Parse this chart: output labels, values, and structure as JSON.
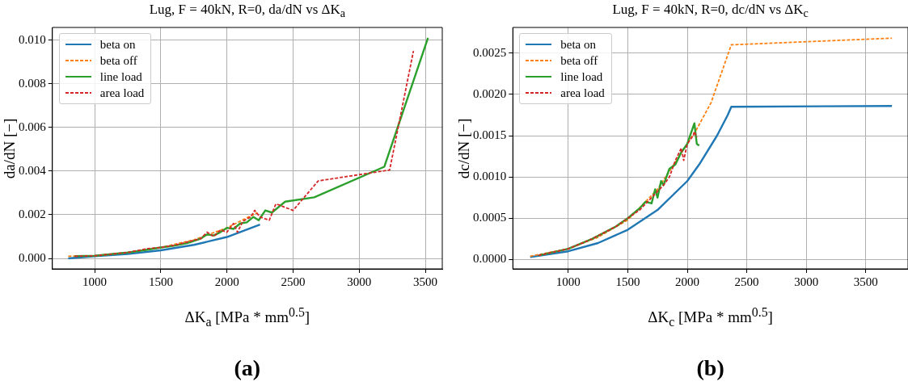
{
  "chart_data": [
    {
      "type": "line",
      "title": "Lug, F = 40kN, R=0, da/dN vs ΔK$_{a}$",
      "xlabel": "ΔK$_{a}$ [MPa * mm$^{0.5}$]",
      "ylabel": "da/dN [−]",
      "annotations": [
        "(a)"
      ],
      "legend": "top left",
      "grid": true,
      "xlim": [
        680,
        3628
      ],
      "ylim": [
        -0.00048,
        0.01058
      ],
      "xticks": [
        1000,
        1500,
        2000,
        2500,
        3000,
        3500
      ],
      "yticks": [
        {
          "value": 0,
          "label": "0.000"
        },
        {
          "value": 0.002,
          "label": "0.002"
        },
        {
          "value": 0.004,
          "label": "0.004"
        },
        {
          "value": 0.006,
          "label": "0.006"
        },
        {
          "value": 0.008,
          "label": "0.008"
        },
        {
          "value": 0.01,
          "label": "0.010"
        }
      ],
      "series": [
        {
          "name": "beta on",
          "color": "#1f77b4",
          "line_style": "solid",
          "x": [
            800,
            1000,
            1250,
            1500,
            1750,
            2000,
            2250
          ],
          "values": [
            0,
            0.0001,
            0.0002,
            0.00037,
            0.00062,
            0.00098,
            0.00155
          ]
        },
        {
          "name": "beta off",
          "color": "#ff7f0e",
          "line_style": "dashed",
          "x": [
            800,
            1000,
            1250,
            1500,
            1750,
            2000,
            2230
          ],
          "values": [
            0.0001,
            0.00012,
            0.00027,
            0.0005,
            0.00085,
            0.0014,
            0.0021
          ]
        },
        {
          "name": "line load",
          "color": "#2ca02c",
          "line_style": "solid",
          "x": [
            850,
            1000,
            1250,
            1400,
            1500,
            1600,
            1700,
            1800,
            1850,
            1900,
            1950,
            2000,
            2050,
            2100,
            2150,
            2200,
            2240,
            2290,
            2340,
            2440,
            2660,
            3190,
            3520
          ],
          "values": [
            0.0001,
            0.00012,
            0.00027,
            0.0004,
            0.0005,
            0.00058,
            0.0007,
            0.0009,
            0.0011,
            0.00105,
            0.0012,
            0.0014,
            0.00135,
            0.0016,
            0.00165,
            0.0019,
            0.00175,
            0.0022,
            0.0021,
            0.0026,
            0.0028,
            0.0042,
            0.0101
          ]
        },
        {
          "name": "area load",
          "color": "#d62728",
          "line_style": "dashed",
          "x": [
            850,
            1000,
            1250,
            1400,
            1500,
            1600,
            1700,
            1800,
            1850,
            1900,
            1950,
            2000,
            2050,
            2080,
            2120,
            2180,
            2210,
            2250,
            2320,
            2370,
            2500,
            2690,
            3230,
            3410
          ],
          "values": [
            0.0001,
            0.00012,
            0.00027,
            0.00045,
            0.0005,
            0.0006,
            0.00075,
            0.0009,
            0.0012,
            0.001,
            0.0013,
            0.0012,
            0.0016,
            0.0012,
            0.0017,
            0.0019,
            0.0022,
            0.0019,
            0.00175,
            0.0025,
            0.0022,
            0.00355,
            0.00405,
            0.0095
          ]
        }
      ]
    },
    {
      "type": "line",
      "title": "Lug, F = 40kN, R=0, dc/dN vs ΔK$_{c}$",
      "xlabel": "ΔK$_{c}$ [MPa * mm$^{0.5}$]",
      "ylabel": "dc/dN [−]",
      "annotations": [
        "(b)"
      ],
      "legend": "top left",
      "grid": true,
      "xlim": [
        534,
        3855
      ],
      "ylim": [
        -0.000113,
        0.00281
      ],
      "xticks": [
        1000,
        1500,
        2000,
        2500,
        3000,
        3500
      ],
      "yticks": [
        {
          "value": 0,
          "label": "0.0000"
        },
        {
          "value": 0.0005,
          "label": "0.0005"
        },
        {
          "value": 0.001,
          "label": "0.0010"
        },
        {
          "value": 0.0015,
          "label": "0.0015"
        },
        {
          "value": 0.002,
          "label": "0.0020"
        },
        {
          "value": 0.0025,
          "label": "0.0025"
        }
      ],
      "series": [
        {
          "name": "beta on",
          "color": "#1f77b4",
          "line_style": "solid",
          "x": [
            680,
            1000,
            1250,
            1500,
            1750,
            2000,
            2100,
            2250,
            2340,
            2370,
            3720
          ],
          "values": [
            3e-05,
            0.0001,
            0.0002,
            0.00036,
            0.0006,
            0.00095,
            0.00115,
            0.0015,
            0.00175,
            0.00185,
            0.00186
          ]
        },
        {
          "name": "beta off",
          "color": "#ff7f0e",
          "line_style": "dashed",
          "x": [
            680,
            1000,
            1250,
            1500,
            1750,
            2000,
            2080,
            2200,
            2370,
            3720
          ],
          "values": [
            4e-05,
            0.00013,
            0.00027,
            0.00048,
            0.00085,
            0.0014,
            0.00158,
            0.0019,
            0.0026,
            0.00268
          ]
        },
        {
          "name": "line load",
          "color": "#2ca02c",
          "line_style": "solid",
          "x": [
            750,
            1000,
            1200,
            1400,
            1500,
            1600,
            1650,
            1700,
            1730,
            1750,
            1780,
            1800,
            1850,
            1900,
            1950,
            2000,
            2060,
            2080,
            2100
          ],
          "values": [
            5e-05,
            0.00013,
            0.00025,
            0.0004,
            0.0005,
            0.00062,
            0.0007,
            0.00068,
            0.00085,
            0.00075,
            0.00095,
            0.0009,
            0.0011,
            0.00115,
            0.0013,
            0.0014,
            0.00165,
            0.0014,
            0.00138
          ]
        },
        {
          "name": "area load",
          "color": "#d62728",
          "line_style": "dashed",
          "x": [
            750,
            1000,
            1200,
            1400,
            1500,
            1600,
            1700,
            1800,
            1850,
            1900,
            1950,
            1970,
            2000,
            2050,
            2060,
            2080
          ],
          "values": [
            5e-05,
            0.00013,
            0.00025,
            0.0004,
            0.0005,
            0.0006,
            0.00075,
            0.0009,
            0.001,
            0.0012,
            0.00135,
            0.0012,
            0.0014,
            0.0015,
            0.00155,
            0.00148
          ]
        }
      ]
    }
  ]
}
